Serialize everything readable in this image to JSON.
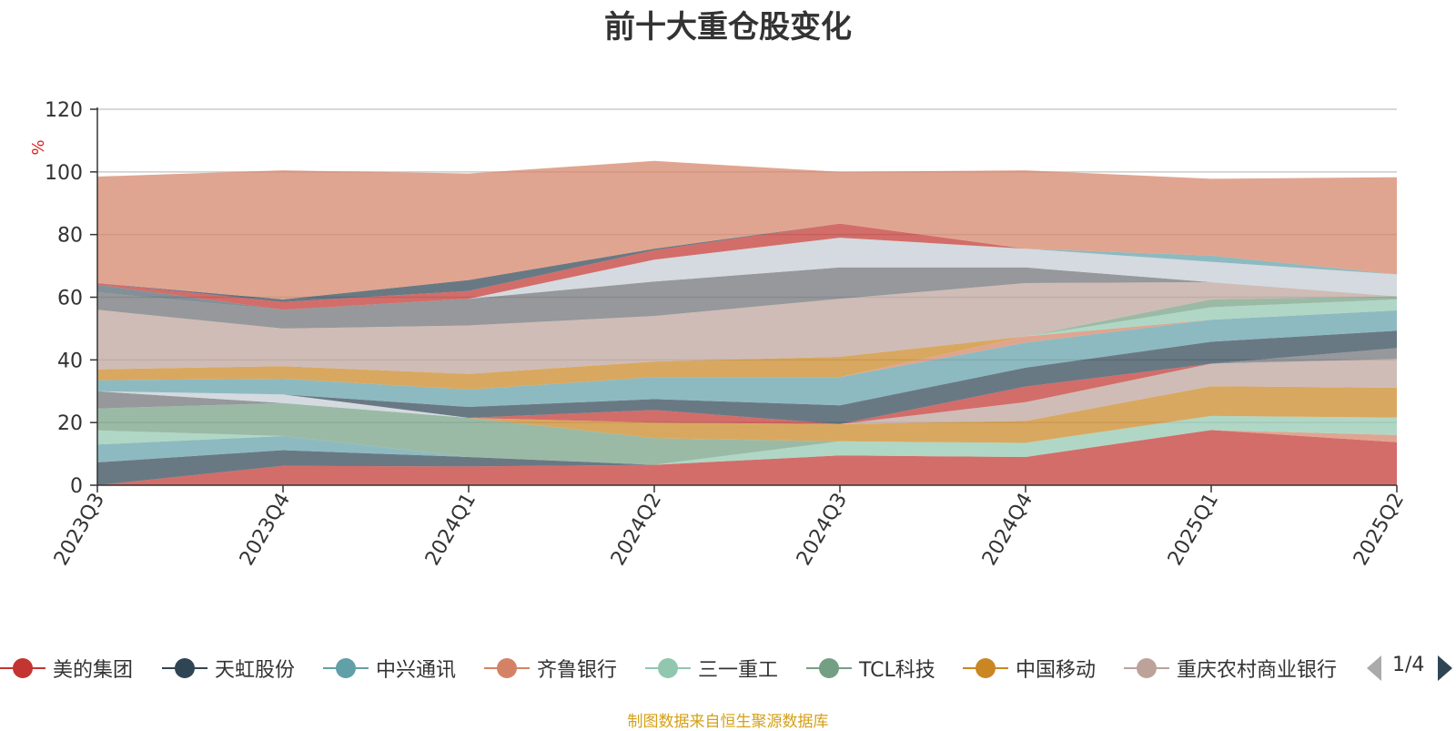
{
  "chart_data": {
    "type": "area",
    "stacked": true,
    "title": "前十大重仓股变化",
    "ylabel": "%",
    "ylim": [
      0,
      120
    ],
    "yticks": [
      0,
      20,
      40,
      60,
      80,
      100,
      120
    ],
    "grid": true,
    "categories": [
      "2023Q3",
      "2023Q4",
      "2024Q1",
      "2024Q2",
      "2024Q3",
      "2024Q4",
      "2025Q1",
      "2025Q2"
    ],
    "series": [
      {
        "name": "美的集团",
        "color": "#c23531",
        "values": [
          0,
          6.2,
          6.0,
          6.5,
          9.5,
          9.0,
          17.6,
          13.7
        ]
      },
      {
        "name": "天虹股份",
        "color": "#2f4554",
        "values": [
          7.3,
          5.0,
          3.0,
          0,
          0,
          0,
          0,
          0
        ]
      },
      {
        "name": "中兴通讯",
        "color": "#61a0a8",
        "values": [
          5.7,
          4.5,
          0,
          0,
          0,
          0,
          0,
          0
        ]
      },
      {
        "name": "齐鲁银行",
        "color": "#d48265",
        "values": [
          0,
          0,
          0,
          0,
          0,
          0,
          0,
          2.3
        ]
      },
      {
        "name": "三一重工",
        "color": "#91c7ae",
        "values": [
          4.5,
          0,
          0,
          0,
          4.5,
          4.5,
          4.5,
          5.6
        ]
      },
      {
        "name": "TCL科技",
        "color": "#749f83",
        "values": [
          7.0,
          10.5,
          12.5,
          8.5,
          0,
          0,
          0,
          0
        ]
      },
      {
        "name": "中国移动",
        "color": "#ca8622",
        "values": [
          0,
          0,
          0,
          5.0,
          5.5,
          7.0,
          9.5,
          9.5
        ]
      },
      {
        "name": "重庆农村商业银行",
        "color": "#bda29a",
        "values": [
          0,
          0,
          0,
          0,
          0,
          6.0,
          7.2,
          9.2
        ]
      },
      {
        "name": "",
        "color": "#6e7074",
        "values": [
          5.5,
          0,
          0,
          0,
          0,
          0,
          0,
          3.5
        ]
      },
      {
        "name": "",
        "color": "#546570",
        "values": [
          0,
          0,
          0,
          0,
          0,
          0,
          0,
          0
        ]
      },
      {
        "name": "",
        "color": "#c4ccd3",
        "values": [
          0,
          2.8,
          0,
          0,
          0,
          0,
          0,
          0
        ]
      },
      {
        "name": "",
        "color": "#c23531",
        "values": [
          0,
          0,
          0,
          4.0,
          0,
          5.0,
          0,
          0
        ]
      },
      {
        "name": "",
        "color": "#2f4554",
        "values": [
          0,
          0,
          3.5,
          3.5,
          6.0,
          6.0,
          7.0,
          5.5
        ]
      },
      {
        "name": "",
        "color": "#61a0a8",
        "values": [
          3.5,
          5.0,
          5.5,
          7.0,
          9.0,
          8.0,
          7.0,
          6.5
        ]
      },
      {
        "name": "",
        "color": "#d48265",
        "values": [
          0,
          0,
          0,
          0,
          0,
          2.0,
          0,
          0
        ]
      },
      {
        "name": "",
        "color": "#91c7ae",
        "values": [
          0,
          0,
          0,
          0,
          0,
          0,
          4.0,
          3.5
        ]
      },
      {
        "name": "",
        "color": "#749f83",
        "values": [
          0,
          0,
          0,
          0,
          0,
          0,
          2.5,
          1.0
        ]
      },
      {
        "name": "",
        "color": "#ca8622",
        "values": [
          3.5,
          4.0,
          5.0,
          5.0,
          6.5,
          0,
          0,
          0
        ]
      },
      {
        "name": "",
        "color": "#bda29a",
        "values": [
          19.0,
          12.0,
          15.5,
          14.5,
          18.5,
          17.0,
          5.5,
          0
        ]
      },
      {
        "name": "",
        "color": "#6e7074",
        "values": [
          5.5,
          6.0,
          8.5,
          11.0,
          10.0,
          5.0,
          0,
          0
        ]
      },
      {
        "name": "",
        "color": "#546570",
        "values": [
          2.5,
          0,
          0,
          0,
          0,
          0,
          0,
          0
        ]
      },
      {
        "name": "",
        "color": "#c4ccd3",
        "values": [
          0,
          0,
          0,
          7.0,
          9.5,
          6.0,
          6.5,
          7.0
        ]
      },
      {
        "name": "",
        "color": "#c23531",
        "values": [
          0.5,
          2.5,
          2.5,
          3.0,
          4.5,
          0,
          0,
          0
        ]
      },
      {
        "name": "",
        "color": "#2f4554",
        "values": [
          0,
          0.8,
          3.5,
          0.5,
          0,
          0,
          0,
          0
        ]
      },
      {
        "name": "",
        "color": "#61a0a8",
        "values": [
          0,
          0,
          0,
          0,
          0,
          0,
          2.0,
          0
        ]
      },
      {
        "name": "",
        "color": "#d48265",
        "values": [
          34.0,
          41.2,
          34.0,
          28.0,
          16.5,
          25.0,
          24.5,
          31.0
        ]
      }
    ]
  },
  "legend": {
    "items": [
      {
        "label": "美的集团",
        "color": "#c23531"
      },
      {
        "label": "天虹股份",
        "color": "#2f4554"
      },
      {
        "label": "中兴通讯",
        "color": "#61a0a8"
      },
      {
        "label": "齐鲁银行",
        "color": "#d48265"
      },
      {
        "label": "三一重工",
        "color": "#91c7ae"
      },
      {
        "label": "TCL科技",
        "color": "#749f83"
      },
      {
        "label": "中国移动",
        "color": "#ca8622"
      },
      {
        "label": "重庆农村商业银行",
        "color": "#bda29a"
      }
    ],
    "page": "1/4"
  },
  "footer": {
    "source": "制图数据来自恒生聚源数据库"
  }
}
